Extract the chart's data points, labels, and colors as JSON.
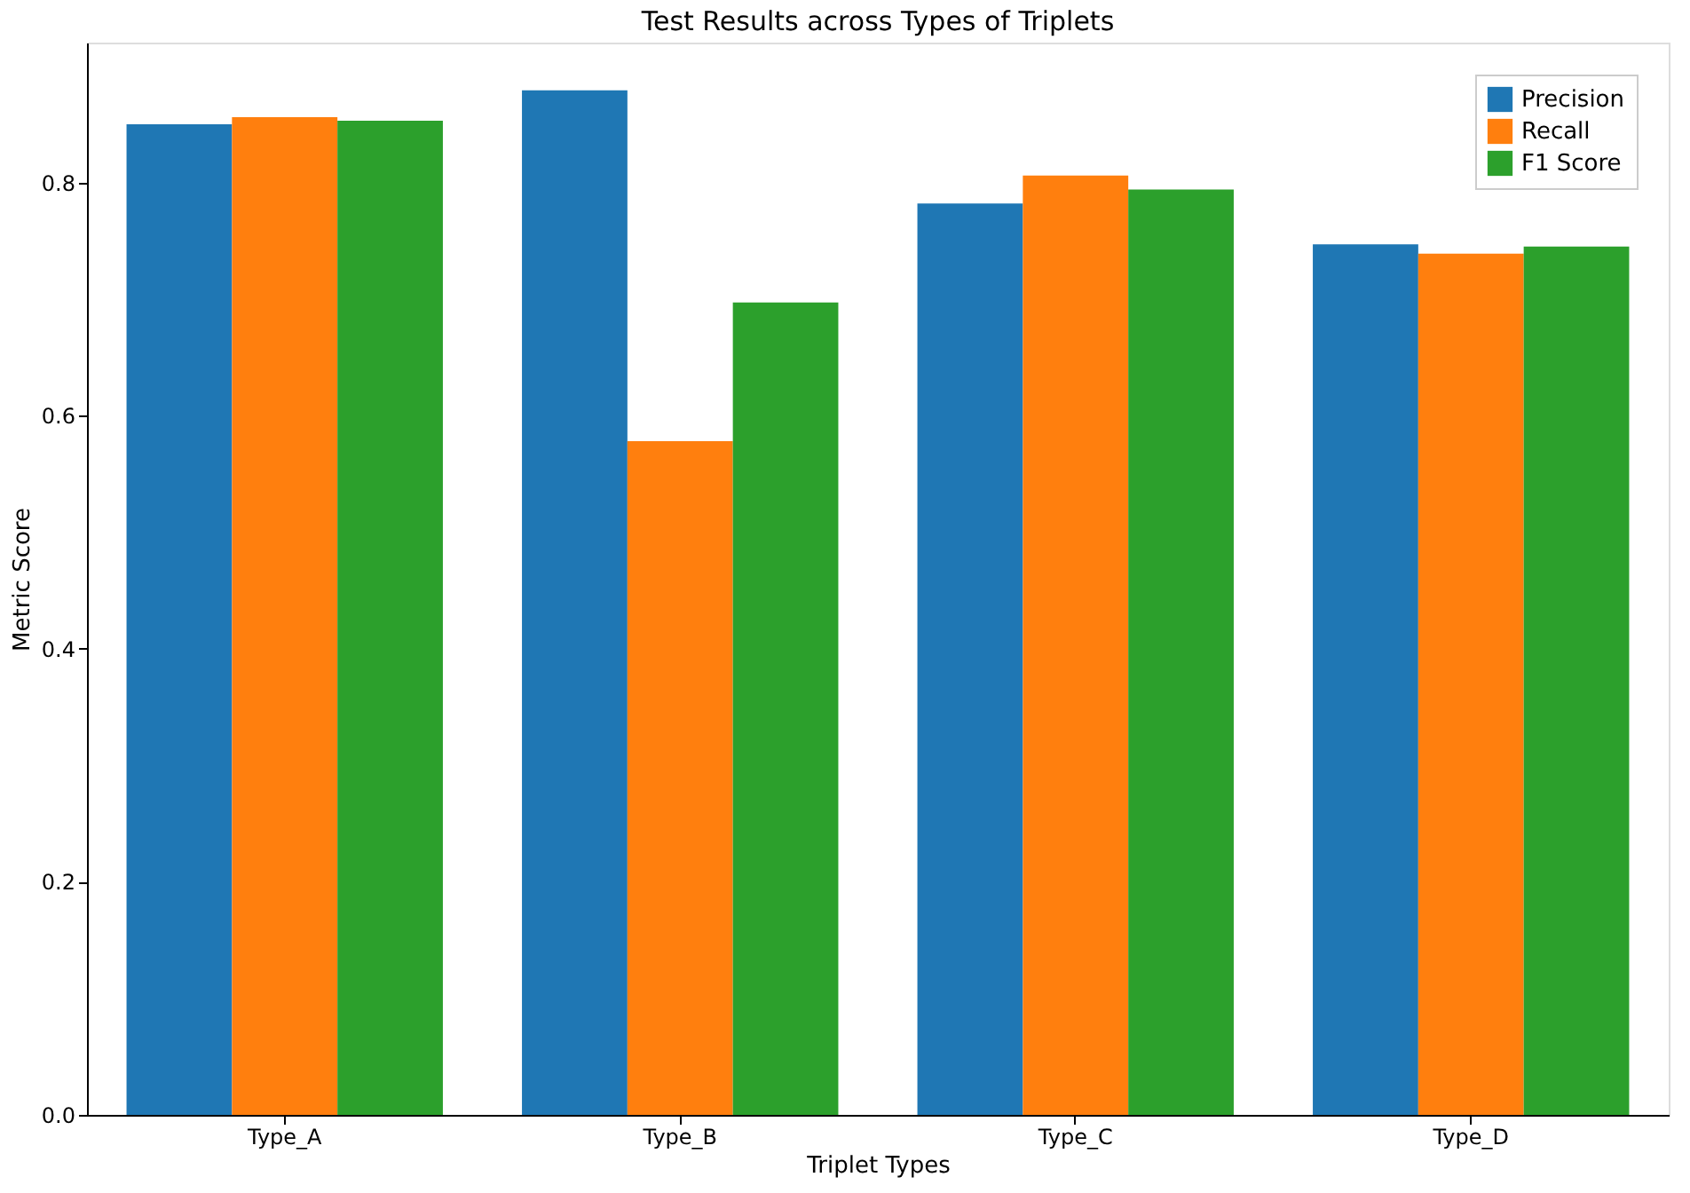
{
  "chart_data": {
    "type": "bar",
    "title": "Test Results across Types of Triplets",
    "xlabel": "Triplet Types",
    "ylabel": "Metric Score",
    "categories": [
      "Type_A",
      "Type_B",
      "Type_C",
      "Type_D"
    ],
    "series": [
      {
        "name": "Precision",
        "color": "#1f77b4",
        "values": [
          0.85,
          0.879,
          0.782,
          0.747
        ]
      },
      {
        "name": "Recall",
        "color": "#ff7f0e",
        "values": [
          0.856,
          0.578,
          0.806,
          0.739
        ]
      },
      {
        "name": "F1 Score",
        "color": "#2ca02c",
        "values": [
          0.853,
          0.697,
          0.794,
          0.745
        ]
      }
    ],
    "ylim": [
      0,
      0.92
    ],
    "yticks": [
      {
        "value": 0,
        "label": "0.0"
      },
      {
        "value": 0.2,
        "label": "0.2"
      },
      {
        "value": 0.4,
        "label": "0.4"
      },
      {
        "value": 0.6,
        "label": "0.6"
      },
      {
        "value": 0.8,
        "label": "0.8"
      }
    ],
    "grid": false,
    "legend": "top right"
  }
}
